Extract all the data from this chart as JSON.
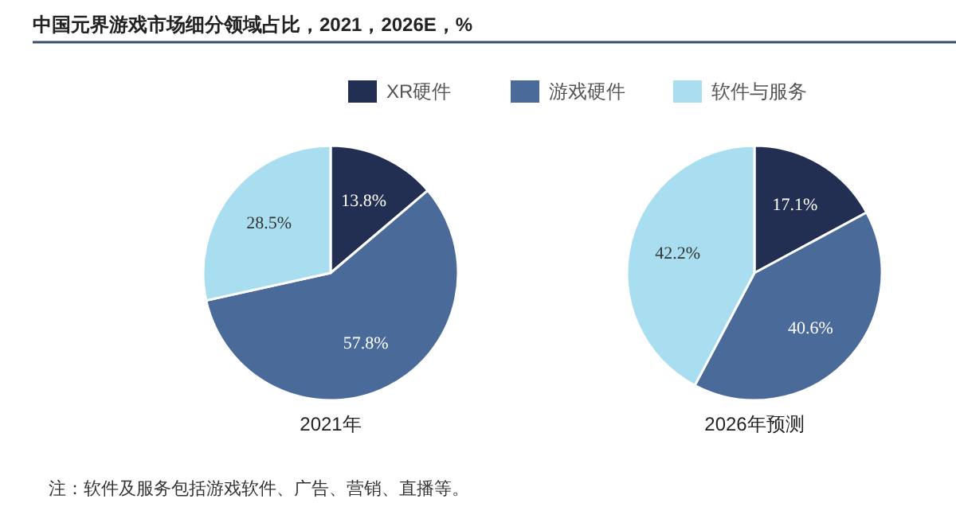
{
  "chart_data": [
    {
      "type": "pie",
      "title": "中国元界游戏市场细分领域占比，2021，2026E，%",
      "xlabel": "2021年",
      "categories": [
        "XR硬件",
        "游戏硬件",
        "软件与服务"
      ],
      "values": [
        13.8,
        57.8,
        28.5
      ],
      "value_labels": [
        "13.8%",
        "57.8%",
        "28.5%"
      ],
      "colors": [
        "#232f52",
        "#4a6a9a",
        "#a8def0"
      ],
      "legend": "top",
      "annotations": [
        "注：软件及服务包括游戏软件、广告、营销、直播等。"
      ]
    },
    {
      "type": "pie",
      "xlabel": "2026年预测",
      "categories": [
        null,
        null,
        null
      ],
      "values": [
        17.1,
        40.6,
        42.2
      ],
      "value_labels": [
        "17.1%",
        "40.6%",
        "42.2%"
      ],
      "colors": [
        "#232f52",
        "#4a6a9a",
        "#a8def0"
      ]
    }
  ]
}
